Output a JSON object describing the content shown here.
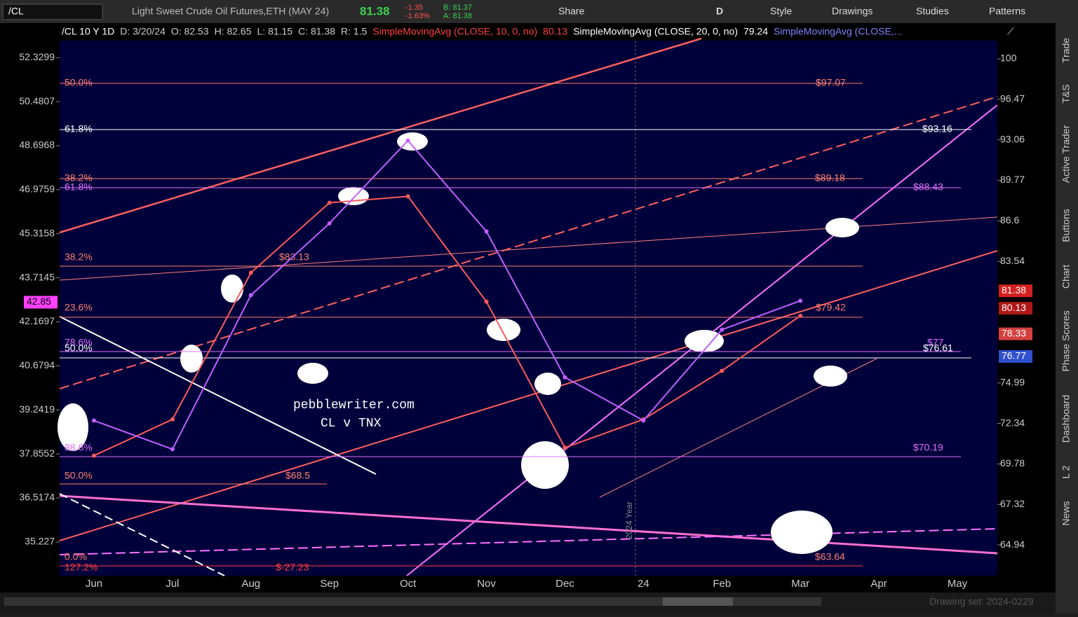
{
  "toolbar": {
    "symbol": "/CL",
    "description": "Light Sweet Crude Oil Futures,ETH (MAY 24)",
    "last": "81.38",
    "change": "-1.35",
    "change_pct": "-1.63%",
    "bid": "B: 81.37",
    "ask": "A: 81.38",
    "share": "Share",
    "period": "D",
    "style": "Style",
    "drawings": "Drawings",
    "studies": "Studies",
    "patterns": "Patterns"
  },
  "info_bar": {
    "symbol": "/CL 10 Y 1D",
    "date": "D: 3/20/24",
    "open": "O: 82.53",
    "high": "H: 82.65",
    "low": "L: 81.15",
    "close": "C: 81.38",
    "range": "R: 1.5",
    "sma10": "SimpleMovingAvg (CLOSE, 10, 0, no)",
    "sma10_value": "80.13",
    "sma20": "SimpleMovingAvg (CLOSE, 20, 0, no)",
    "sma20_value": "79.24",
    "sma_other": "SimpleMovingAvg (CLOSE,..."
  },
  "chart_data": {
    "type": "line",
    "log_scale": true,
    "categories": [
      "Jun",
      "Jul",
      "Aug",
      "Sep",
      "Oct",
      "Nov",
      "Dec",
      "24",
      "Feb",
      "Mar",
      "Apr",
      "May"
    ],
    "series": [
      {
        "color": "#ff5a5a",
        "axis": "y2",
        "values": [
          70.3,
          72.6,
          82.7,
          88.0,
          88.5,
          80.6,
          70.8,
          72.6,
          75.8,
          79.6,
          null,
          null
        ]
      },
      {
        "color": "#c060ff",
        "values": [
          38.9,
          38.0,
          43.1,
          45.7,
          48.9,
          45.4,
          40.3,
          38.9,
          41.9,
          42.9,
          null,
          null
        ]
      }
    ],
    "ylim": [
      34.27,
      53.06
    ],
    "yticks": [
      35.227,
      36.5174,
      37.8552,
      39.2419,
      40.6794,
      42.1697,
      43.7145,
      45.3158,
      46.9759,
      48.6968,
      50.4807,
      52.3299
    ],
    "y2lim": [
      63.19,
      101.63
    ],
    "y2ticks": [
      64.94,
      67.32,
      69.78,
      72.34,
      74.99,
      83.54,
      86.6,
      89.77,
      93.06,
      96.47,
      100
    ],
    "price_tags": [
      {
        "value": 81.38,
        "color": "#d42020"
      },
      {
        "value": 80.13,
        "color": "#b01818"
      },
      {
        "value": 78.33,
        "color": "#d44040"
      },
      {
        "value": 76.77,
        "color": "#3050d0"
      }
    ],
    "left_tag": {
      "value": 42.85,
      "color": "#ff40ff"
    },
    "fib_levels": [
      {
        "pct": "50.0%",
        "price": "$97.07"
      },
      {
        "pct": "61.8%",
        "price": "$93.16"
      },
      {
        "pct": "38.2%",
        "price": "$89.18"
      },
      {
        "pct": "61.8%",
        "price": "$88.43"
      },
      {
        "pct": "38.2%",
        "price": "$83.13"
      },
      {
        "pct": "23.6%",
        "price": "$79.42"
      },
      {
        "pct": "78.6%",
        "price": "$77"
      },
      {
        "pct": "50.0%",
        "price": "$76.61"
      },
      {
        "pct": "88.6%",
        "price": "$70.19"
      },
      {
        "pct": "50.0%",
        "price": "$68.5"
      },
      {
        "pct": "0.0%",
        "price": "$63.64"
      },
      {
        "pct": "127.2%",
        "price": "$-27.23"
      }
    ],
    "annotations": [
      "pebblewriter.com",
      "CL v TNX"
    ],
    "year_marker": "2024 Year"
  },
  "side_tabs": [
    "Trade",
    "T&S",
    "Active Trader",
    "Buttons",
    "Chart",
    "Phase Scores",
    "Dashboard",
    "L 2",
    "News"
  ],
  "footer": {
    "drawing_set": "Drawing set: 2024-0229"
  }
}
